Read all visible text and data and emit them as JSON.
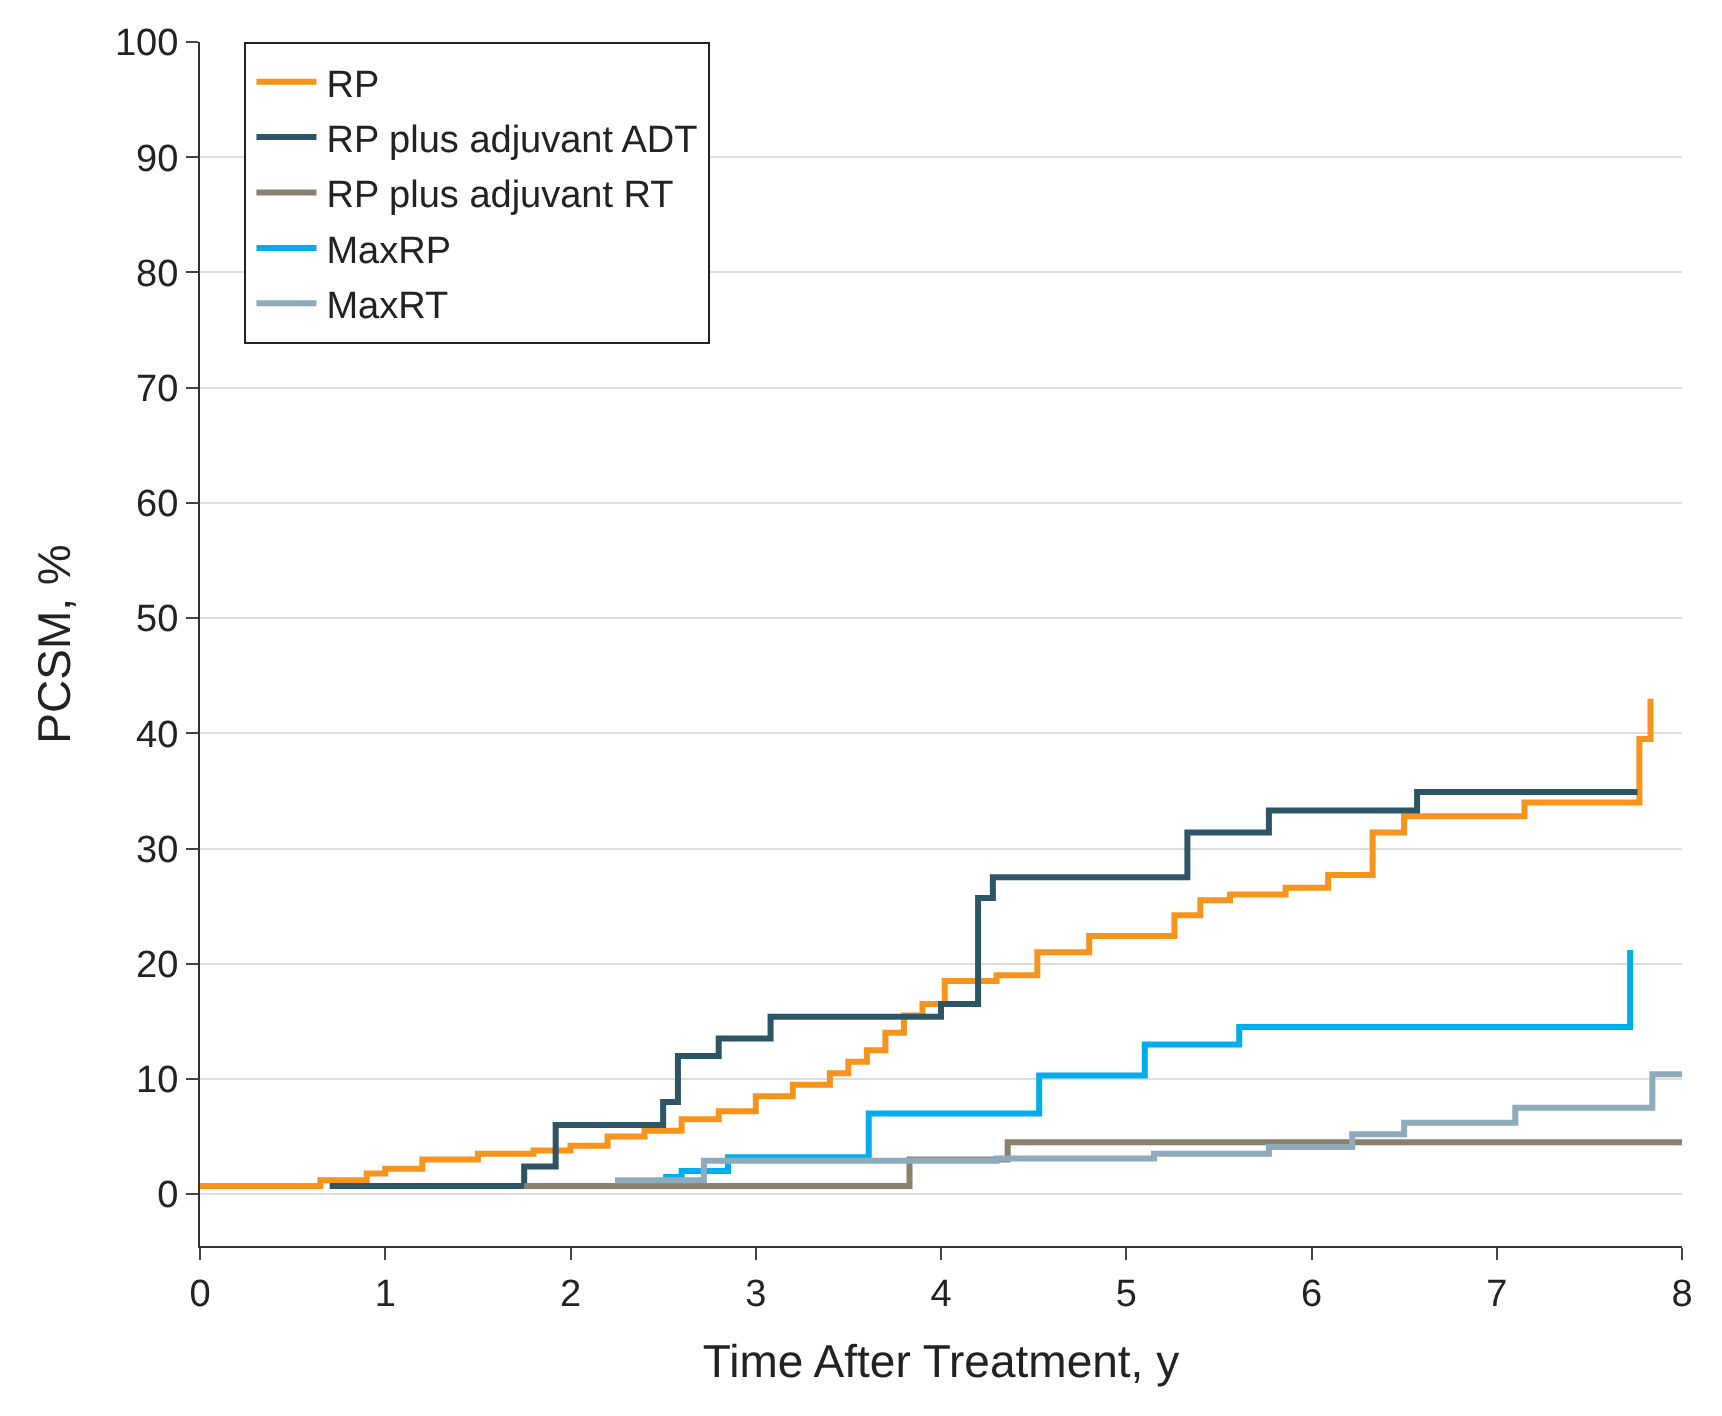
{
  "chart_data": {
    "type": "step",
    "xlabel": "Time After Treatment, y",
    "ylabel": "PCSM, %",
    "xlim": [
      0,
      8
    ],
    "ylim": [
      -4.5,
      100
    ],
    "xticks": [
      0,
      1,
      2,
      3,
      4,
      5,
      6,
      7,
      8
    ],
    "yticks": [
      0,
      10,
      20,
      30,
      40,
      50,
      60,
      70,
      80,
      90,
      100
    ],
    "grid": "y",
    "legend": "top left",
    "marker": "none",
    "line_style": "solid",
    "series": [
      {
        "name": "RP",
        "color": "#f7941d",
        "x": [
          0,
          0.65,
          0.9,
          1.0,
          1.2,
          1.5,
          1.8,
          2.0,
          2.2,
          2.4,
          2.6,
          2.8,
          3.0,
          3.2,
          3.4,
          3.5,
          3.6,
          3.7,
          3.8,
          3.9,
          4.02,
          4.3,
          4.52,
          4.8,
          5.26,
          5.4,
          5.56,
          5.86,
          6.09,
          6.33,
          6.5,
          7.15,
          7.77,
          7.83
        ],
        "values": [
          0.7,
          1.2,
          1.8,
          2.2,
          3.0,
          3.5,
          3.8,
          4.2,
          5.0,
          5.5,
          6.5,
          7.2,
          8.5,
          9.5,
          10.5,
          11.5,
          12.5,
          14.0,
          15.5,
          16.5,
          18.5,
          19.0,
          21.0,
          22.4,
          24.2,
          25.5,
          26.0,
          26.6,
          27.7,
          31.4,
          32.8,
          34.0,
          39.5,
          43.0
        ]
      },
      {
        "name": "RP plus adjuvant ADT",
        "color": "#2e5566",
        "x": [
          0.7,
          1.75,
          1.92,
          2.5,
          2.58,
          2.8,
          3.08,
          4.0,
          4.2,
          4.28,
          5.33,
          5.77,
          6.57,
          7.76
        ],
        "values": [
          0.7,
          2.4,
          6.0,
          8.0,
          12.0,
          13.5,
          15.4,
          16.5,
          25.7,
          27.5,
          31.4,
          33.3,
          34.9,
          34.9
        ]
      },
      {
        "name": "RP plus adjuvant RT",
        "color": "#8a8070",
        "x": [
          1.75,
          3.83,
          4.36,
          8.0
        ],
        "values": [
          0.7,
          3.0,
          4.5,
          4.5
        ]
      },
      {
        "name": "MaxRP",
        "color": "#00aeef",
        "x": [
          2.5,
          2.6,
          2.85,
          3.61,
          4.53,
          5.1,
          5.61,
          7.72
        ],
        "values": [
          1.5,
          2.0,
          3.2,
          7.0,
          10.3,
          13.0,
          14.5,
          21.2
        ]
      },
      {
        "name": "MaxRT",
        "color": "#8eabbb",
        "x": [
          2.24,
          2.72,
          4.3,
          5.15,
          5.77,
          6.22,
          6.5,
          7.1,
          7.84,
          8.0
        ],
        "values": [
          1.2,
          2.9,
          3.1,
          3.5,
          4.1,
          5.2,
          6.2,
          7.5,
          10.4,
          10.4
        ]
      }
    ]
  }
}
